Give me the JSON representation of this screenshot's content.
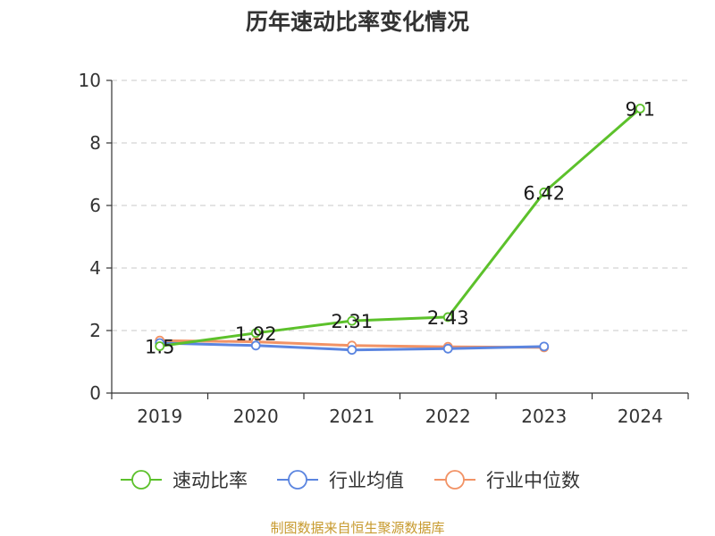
{
  "chart_data": {
    "type": "line",
    "title": "历年速动比率变化情况",
    "categories": [
      "2019",
      "2020",
      "2021",
      "2022",
      "2023",
      "2024"
    ],
    "ylim": [
      0,
      10
    ],
    "yticks": [
      0,
      2,
      4,
      6,
      8,
      10
    ],
    "grid": true,
    "legend_position": "bottom",
    "series": [
      {
        "name": "速动比率",
        "color": "#5cc12b",
        "values": [
          1.5,
          1.92,
          2.31,
          2.43,
          6.42,
          9.1
        ],
        "show_labels": true
      },
      {
        "name": "行业均值",
        "color": "#5b85e0",
        "values": [
          1.6,
          1.52,
          1.38,
          1.42,
          1.49,
          null
        ],
        "show_labels": false
      },
      {
        "name": "行业中位数",
        "color": "#f29366",
        "values": [
          1.68,
          1.64,
          1.52,
          1.48,
          1.46,
          null
        ],
        "show_labels": false
      }
    ]
  },
  "source_text": "制图数据来自恒生聚源数据库"
}
